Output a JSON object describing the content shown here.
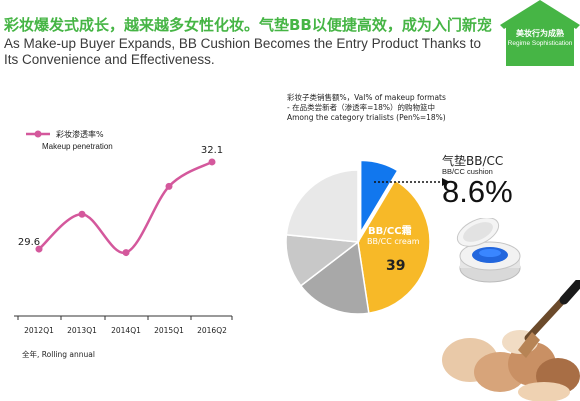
{
  "header": {
    "title_cn": "彩妆爆发式成长，越来越多女性化妆。气垫BB以便捷高效，成为入门新宠",
    "title_en": "As Make-up Buyer Expands, BB Cushion Becomes the Entry Product Thanks to Its Convenience and Effectiveness."
  },
  "badge": {
    "label_cn": "美妆行为成熟",
    "label_en": "Regime Sophistication"
  },
  "line_chart": {
    "legend_cn": "彩妆渗透率%",
    "legend_en": "Makeup penetration",
    "footnote": "全年, Rolling annual"
  },
  "pie_chart": {
    "notes": [
      "彩妆子类销售额%，Val% of makeup formats",
      "-   在品类尝新者（渗透率=18%）的购物篮中",
      "    Among the category trialists  (Pen%=18%)"
    ],
    "slice_label_cn": "BB/CC霜",
    "slice_label_en": "BB/CC cream",
    "slice_value": "39"
  },
  "callout": {
    "label_cn": "气垫BB/CC",
    "label_en": "BB/CC cushion",
    "value": "8.6%"
  },
  "chart_data": [
    {
      "type": "line",
      "x": [
        "2012Q1",
        "2013Q1",
        "2014Q1",
        "2015Q1",
        "2016Q2"
      ],
      "series": [
        {
          "name": "彩妆渗透率% Makeup penetration",
          "values": [
            29.6,
            30.6,
            29.5,
            31.4,
            32.1
          ]
        }
      ],
      "data_labels": [
        "29.6",
        "32.1"
      ],
      "color": "#d4589c",
      "grid": false
    },
    {
      "type": "pie",
      "slices": [
        {
          "label": "BB/CC cushion",
          "value": 8.6,
          "color": "#1177ee"
        },
        {
          "label": "BB/CC cream",
          "value": 39,
          "color": "#f7b928"
        },
        {
          "label": "other-1",
          "value": 17,
          "color": "#a8a8a8"
        },
        {
          "label": "other-2",
          "value": 12,
          "color": "#c8c8c8"
        },
        {
          "label": "other-3",
          "value": 23.4,
          "color": "#e8e8e8"
        }
      ]
    }
  ],
  "colors": {
    "title": "#46b545",
    "line": "#d4589c",
    "cushion": "#1177ee",
    "cream": "#f7b928"
  }
}
